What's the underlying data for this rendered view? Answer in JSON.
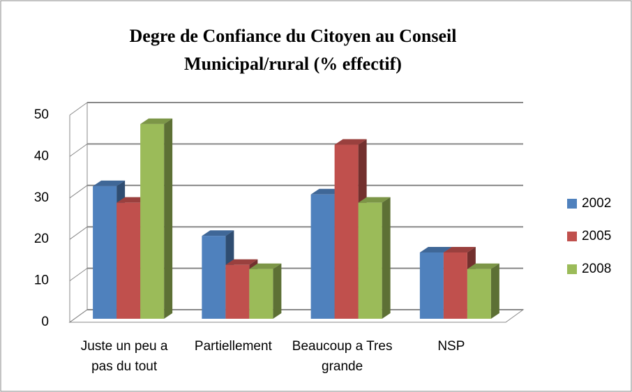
{
  "chart_data": {
    "type": "bar3d",
    "title": "Degre de Confiance du Citoyen au Conseil Municipal/rural (% effectif)",
    "categories": [
      "Juste un peu a pas du tout",
      "Partiellement",
      "Beaucoup a Tres grande",
      "NSP"
    ],
    "series": [
      {
        "name": "2002",
        "color": "#4f81bd",
        "values": [
          32,
          20,
          30,
          16
        ]
      },
      {
        "name": "2005",
        "color": "#c0504d",
        "values": [
          28,
          13,
          42,
          16
        ]
      },
      {
        "name": "2008",
        "color": "#9bbb59",
        "values": [
          47,
          12,
          28,
          12
        ]
      }
    ],
    "ylim": [
      0,
      50
    ],
    "yticks": [
      0,
      10,
      20,
      30,
      40,
      50
    ],
    "grid": true,
    "legend": "right"
  }
}
